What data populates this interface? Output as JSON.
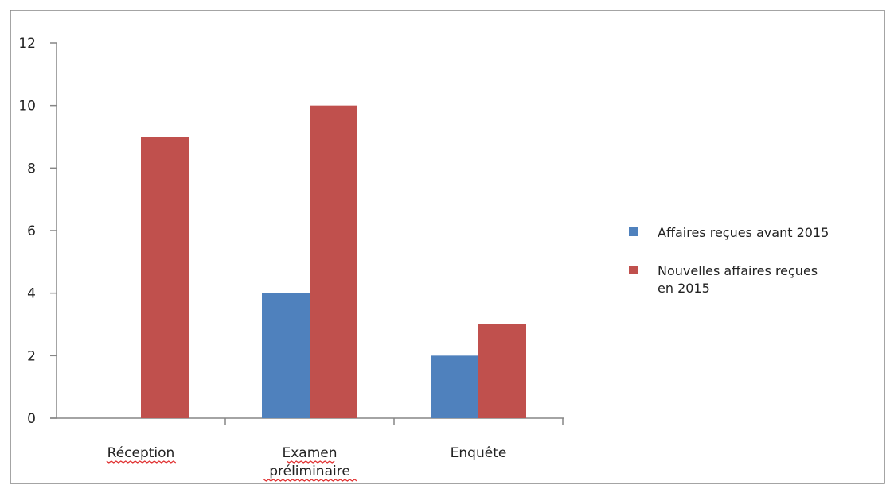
{
  "chart_data": {
    "type": "bar",
    "categories": [
      "Réception",
      "Examen préliminaire",
      "Enquête"
    ],
    "category_lines": [
      [
        "Réception"
      ],
      [
        "Examen",
        "préliminaire"
      ],
      [
        "Enquête"
      ]
    ],
    "series": [
      {
        "name": "Affaires reçues avant 2015",
        "values": [
          0,
          4,
          2
        ],
        "color": "#4f81bd"
      },
      {
        "name": "Nouvelles affaires reçues en 2015",
        "legend_lines": [
          "Nouvelles affaires reçues",
          "en 2015"
        ],
        "values": [
          9,
          10,
          3
        ],
        "color": "#c0504d"
      }
    ],
    "yticks": [
      0,
      2,
      4,
      6,
      8,
      10,
      12
    ],
    "ylim": [
      0,
      12
    ],
    "grid": false,
    "legend_position": "right",
    "spellcheck_underlined": [
      "Réception",
      "Examen",
      "préliminaire"
    ],
    "colors": {
      "axis": "#868686",
      "frame": "#868686",
      "spellcheck": "#e03030"
    }
  }
}
